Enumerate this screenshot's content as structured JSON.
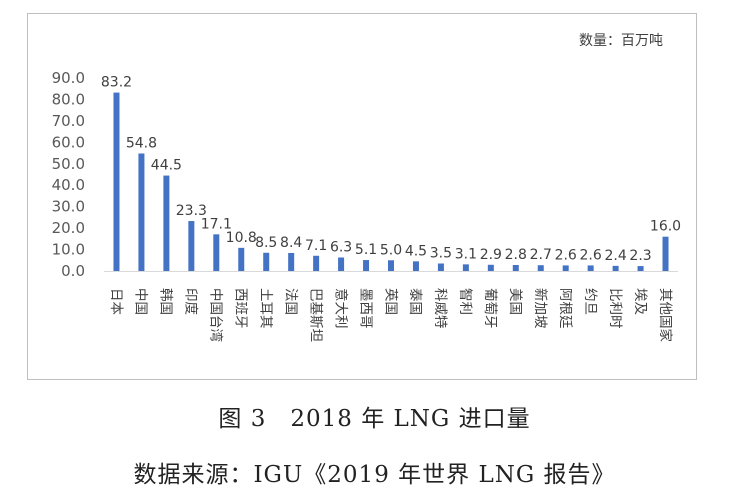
{
  "caption": {
    "title": "图 3　2018 年 LNG 进口量",
    "source": "数据来源：IGU《2019 年世界 LNG 报告》"
  },
  "chart_data": {
    "type": "bar",
    "unit_label": "数量：百万吨",
    "categories": [
      "日本",
      "中国",
      "韩国",
      "印度",
      "中国台湾",
      "西班牙",
      "土耳其",
      "法国",
      "巴基斯坦",
      "意大利",
      "墨西哥",
      "英国",
      "泰国",
      "科威特",
      "智利",
      "葡萄牙",
      "美国",
      "新加坡",
      "阿根廷",
      "约旦",
      "比利时",
      "埃及",
      "其他国家"
    ],
    "values": [
      83.2,
      54.8,
      44.5,
      23.3,
      17.1,
      10.8,
      8.5,
      8.4,
      7.1,
      6.3,
      5.1,
      5.0,
      4.5,
      3.5,
      3.1,
      2.9,
      2.8,
      2.7,
      2.6,
      2.6,
      2.4,
      2.3,
      16.0
    ],
    "data_labels": [
      "83.2",
      "54.8",
      "44.5",
      "23.3",
      "17.1",
      "10.8",
      "8.5",
      "8.4",
      "7.1",
      "6.3",
      "5.1",
      "5.0",
      "4.5",
      "3.5",
      "3.1",
      "2.9",
      "2.8",
      "2.7",
      "2.6",
      "2.6",
      "2.4",
      "2.3",
      "16.0"
    ],
    "ylim": [
      0,
      90
    ],
    "yticks": [
      "0.0",
      "10.0",
      "20.0",
      "30.0",
      "40.0",
      "50.0",
      "60.0",
      "70.0",
      "80.0",
      "90.0"
    ],
    "grid": false,
    "legend": "none",
    "bar_color": "#4472c4"
  }
}
